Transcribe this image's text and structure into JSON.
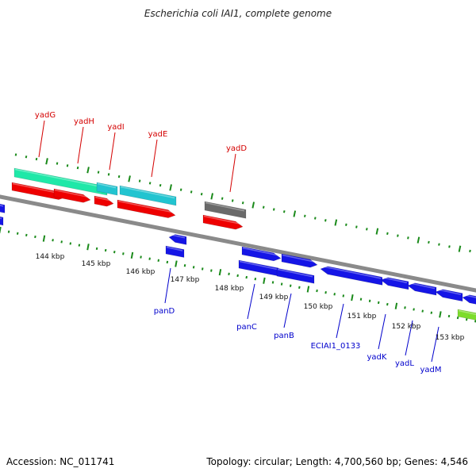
{
  "title": "Escherichia coli IAI1, complete genome",
  "footer": {
    "accession": "Accession: NC_011741",
    "stats": "Topology: circular; Length: 4,700,560 bp; Genes: 4,546"
  },
  "colors": {
    "backbone": "#8a8a8a",
    "tick": "#1a8a1a",
    "label_forward": "#d40000",
    "label_reverse": "#0000cc",
    "gene_red": "#ee0000",
    "gene_cyan": "#22c4d0",
    "gene_teal": "#1fe8a8",
    "gene_gray": "#6a6a6a",
    "gene_blue": "#1515e6",
    "gene_green": "#7ddc2c"
  },
  "kbp_ticks": [
    "144 kbp",
    "145 kbp",
    "146 kbp",
    "147 kbp",
    "148 kbp",
    "149 kbp",
    "150 kbp",
    "151 kbp",
    "152 kbp",
    "153 kbp"
  ],
  "gene_labels": [
    "yadG",
    "yadH",
    "yadI",
    "yadE",
    "yadD",
    "panD",
    "panC",
    "panB",
    "ECIAI1_0133",
    "yadK",
    "yadL",
    "yadM"
  ]
}
